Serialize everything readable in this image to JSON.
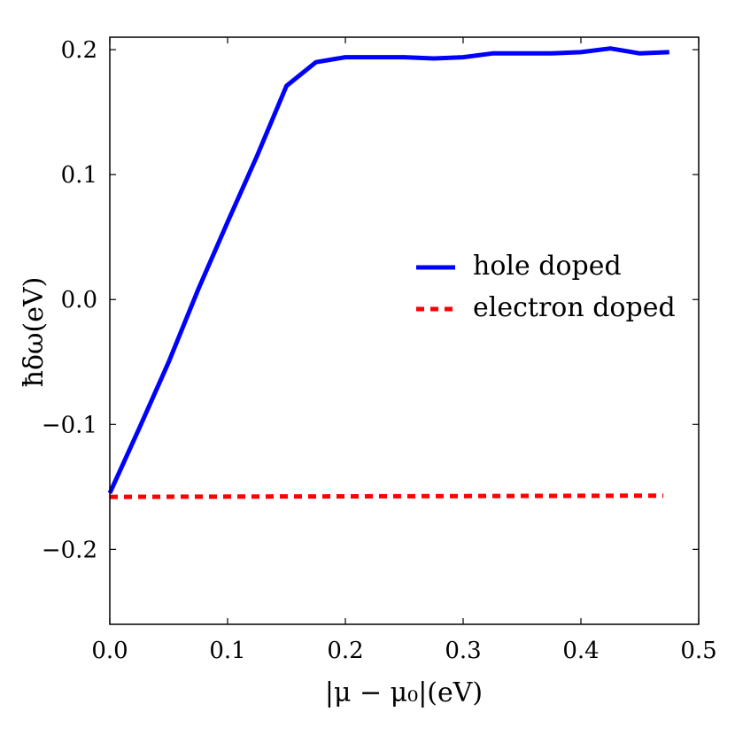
{
  "chart_data": {
    "type": "line",
    "title": "",
    "xlabel": "|μ − μ₀|(eV)",
    "ylabel": "ħδω(eV)",
    "xlim": [
      0.0,
      0.5
    ],
    "ylim": [
      -0.26,
      0.21
    ],
    "xticks": [
      0.0,
      0.1,
      0.2,
      0.3,
      0.4,
      0.5
    ],
    "xtick_labels": [
      "0.0",
      "0.1",
      "0.2",
      "0.3",
      "0.4",
      "0.5"
    ],
    "yticks": [
      -0.2,
      -0.1,
      0.0,
      0.1,
      0.2
    ],
    "ytick_labels": [
      "−0.2",
      "−0.1",
      "0.0",
      "0.1",
      "0.2"
    ],
    "grid": false,
    "legend": {
      "position": "center-right"
    },
    "series": [
      {
        "name": "hole doped",
        "color": "#0000ff",
        "style": "solid",
        "x": [
          0.0,
          0.025,
          0.05,
          0.075,
          0.1,
          0.125,
          0.15,
          0.175,
          0.2,
          0.225,
          0.25,
          0.275,
          0.3,
          0.325,
          0.35,
          0.375,
          0.4,
          0.425,
          0.45,
          0.475
        ],
        "y": [
          -0.155,
          -0.103,
          -0.05,
          0.008,
          0.062,
          0.115,
          0.171,
          0.19,
          0.194,
          0.194,
          0.194,
          0.193,
          0.194,
          0.197,
          0.197,
          0.197,
          0.198,
          0.201,
          0.197,
          0.198
        ]
      },
      {
        "name": "electron doped",
        "color": "#ff0000",
        "style": "dashed",
        "x": [
          0.0,
          0.47
        ],
        "y": [
          -0.158,
          -0.157
        ]
      }
    ]
  }
}
